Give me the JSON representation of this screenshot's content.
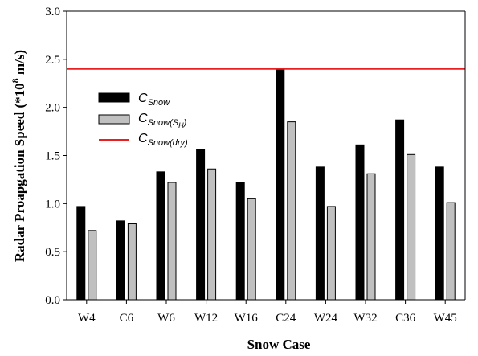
{
  "chart_data": {
    "type": "bar",
    "xlabel": "Snow Case",
    "ylabel": {
      "prefix": "Radar Proapgation Speed (*10",
      "superscript": "8",
      "suffix": " m/s)"
    },
    "ylim": [
      0,
      3.0
    ],
    "yticks": [
      "0.0",
      "0.5",
      "1.0",
      "1.5",
      "2.0",
      "2.5",
      "3.0"
    ],
    "categories": [
      "W4",
      "C6",
      "W6",
      "W12",
      "W16",
      "C24",
      "W24",
      "W32",
      "C36",
      "W45"
    ],
    "series": [
      {
        "name": "C_Snow",
        "name_main": "C",
        "name_sub": "Snow",
        "color": "#000000",
        "values": [
          0.97,
          0.82,
          1.33,
          1.56,
          1.22,
          2.4,
          1.38,
          1.61,
          1.87,
          1.38
        ]
      },
      {
        "name": "C_Snow(S_H)",
        "name_main": "C",
        "name_sub": "Snow(S",
        "name_subsub": "H",
        "name_sub_end": ")",
        "color": "#c0c0c0",
        "values": [
          0.72,
          0.79,
          1.22,
          1.36,
          1.05,
          1.85,
          0.97,
          1.31,
          1.51,
          1.01
        ]
      }
    ],
    "reference_line": {
      "name": "C_Snow(dry)",
      "name_main": "C",
      "name_sub": "Snow(dry)",
      "color": "#e8201f",
      "value": 2.4
    },
    "legend_position": "upper-left",
    "grid": false
  }
}
